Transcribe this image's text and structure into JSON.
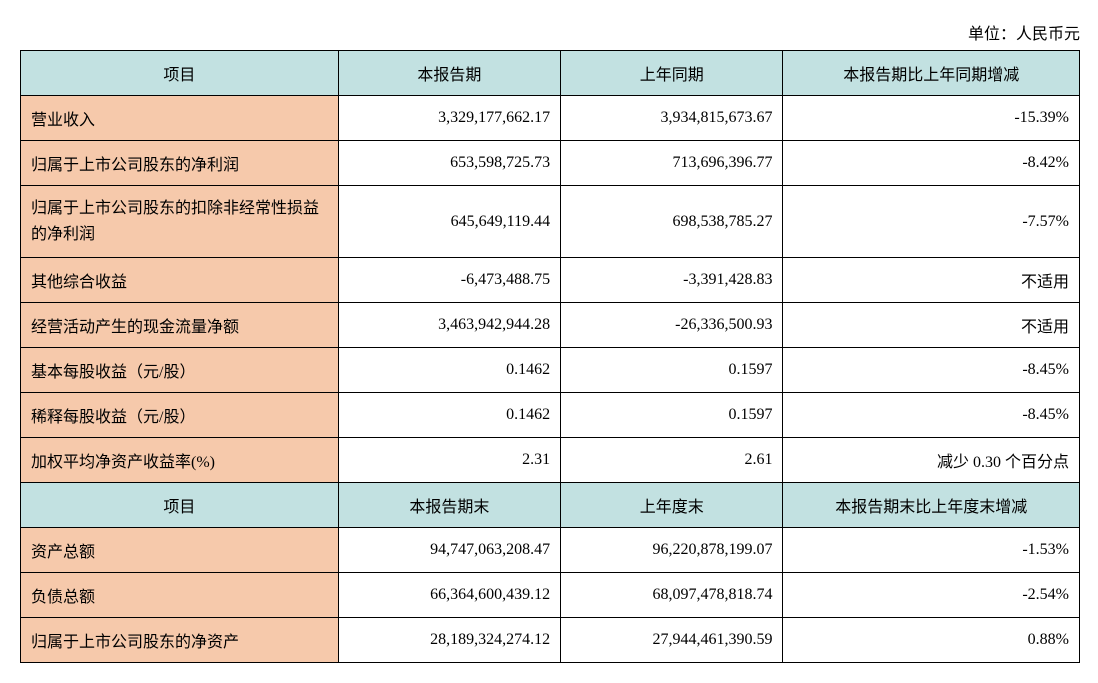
{
  "unit_line": "单位：人民币元",
  "colors": {
    "header_bg": "#c2e1e1",
    "label_bg": "#f6c9ab",
    "border": "#000000",
    "bg": "#ffffff",
    "text": "#000000"
  },
  "font": {
    "family": "SimSun",
    "size_pt": 12
  },
  "col_widths_pct": [
    30,
    21,
    21,
    28
  ],
  "header1": {
    "c1": "项目",
    "c2": "本报告期",
    "c3": "上年同期",
    "c4": "本报告期比上年同期增减"
  },
  "section1_rows": [
    {
      "label": "营业收入",
      "c2": "3,329,177,662.17",
      "c3": "3,934,815,673.67",
      "c4": "-15.39%"
    },
    {
      "label": "归属于上市公司股东的净利润",
      "c2": "653,598,725.73",
      "c3": "713,696,396.77",
      "c4": "-8.42%"
    },
    {
      "label": "归属于上市公司股东的扣除非经常性损益的净利润",
      "c2": "645,649,119.44",
      "c3": "698,538,785.27",
      "c4": "-7.57%"
    },
    {
      "label": "其他综合收益",
      "c2": "-6,473,488.75",
      "c3": "-3,391,428.83",
      "c4": "不适用"
    },
    {
      "label": "经营活动产生的现金流量净额",
      "c2": "3,463,942,944.28",
      "c3": "-26,336,500.93",
      "c4": "不适用"
    },
    {
      "label": "基本每股收益（元/股）",
      "c2": "0.1462",
      "c3": "0.1597",
      "c4": "-8.45%"
    },
    {
      "label": "稀释每股收益（元/股）",
      "c2": "0.1462",
      "c3": "0.1597",
      "c4": "-8.45%"
    },
    {
      "label": "加权平均净资产收益率(%)",
      "c2": "2.31",
      "c3": "2.61",
      "c4": "减少 0.30 个百分点"
    }
  ],
  "header2": {
    "c1": "项目",
    "c2": "本报告期末",
    "c3": "上年度末",
    "c4": "本报告期末比上年度末增减"
  },
  "section2_rows": [
    {
      "label": "资产总额",
      "c2": "94,747,063,208.47",
      "c3": "96,220,878,199.07",
      "c4": "-1.53%"
    },
    {
      "label": "负债总额",
      "c2": "66,364,600,439.12",
      "c3": "68,097,478,818.74",
      "c4": "-2.54%"
    },
    {
      "label": "归属于上市公司股东的净资产",
      "c2": "28,189,324,274.12",
      "c3": "27,944,461,390.59",
      "c4": "0.88%"
    }
  ]
}
